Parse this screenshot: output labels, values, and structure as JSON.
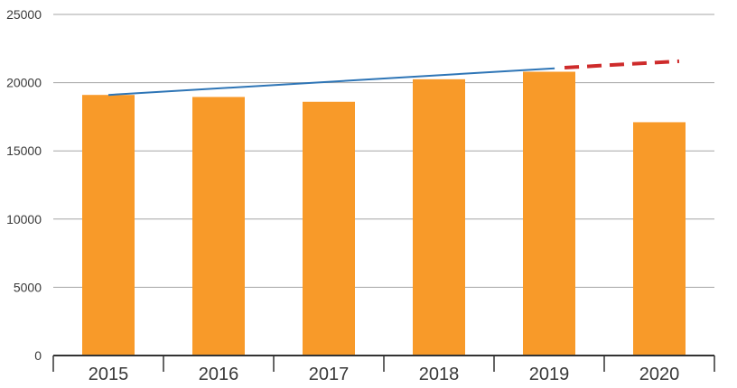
{
  "figure": {
    "background": "#ffffff"
  },
  "chart_data": {
    "type": "bar",
    "title": "",
    "xlabel": "",
    "ylabel": "",
    "categories": [
      "2015",
      "2016",
      "2017",
      "2018",
      "2019",
      "2020"
    ],
    "values": [
      19100,
      18950,
      18600,
      20250,
      20800,
      17100
    ],
    "series": [
      {
        "name": "trend-line",
        "type": "line",
        "style": "solid",
        "color": "#2E75B6",
        "stroke_width": 2,
        "x": [
          2015,
          2019.05
        ],
        "values": [
          19100,
          21050
        ]
      },
      {
        "name": "forecast-line",
        "type": "line",
        "style": "dashed",
        "color": "#CE2B2B",
        "stroke_width": 4,
        "dash_pattern": "16 9",
        "x": [
          2019.14,
          2020.18
        ],
        "values": [
          21100,
          21570
        ]
      }
    ],
    "ylim": [
      0,
      25000
    ],
    "ytick_step": 5000,
    "ytick_labels": [
      "0",
      "5000",
      "10000",
      "15000",
      "20000",
      "25000"
    ],
    "grid": true,
    "legend": "none",
    "bar_color": "#F89A29",
    "gridline_color": "#A6A6A6",
    "axis_color": "#333333",
    "label_color": "#3a3a3a"
  }
}
